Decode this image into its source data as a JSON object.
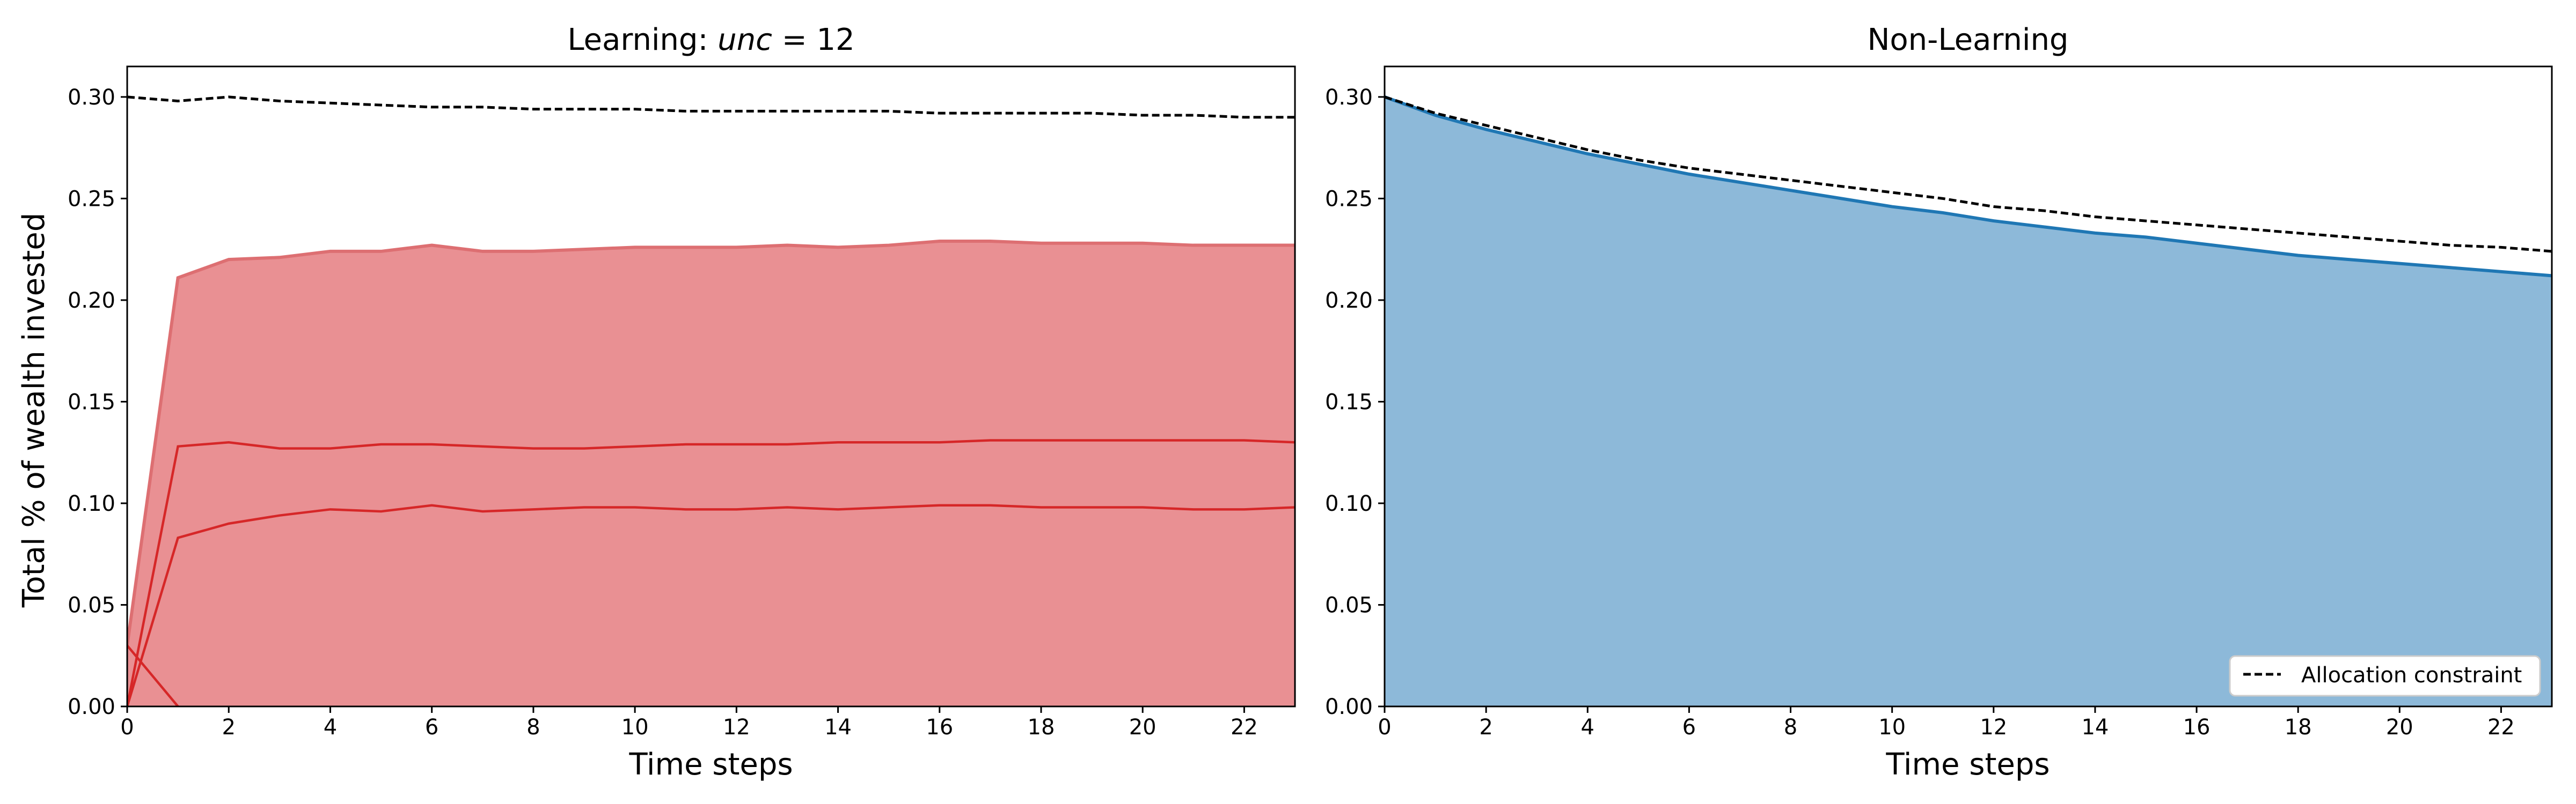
{
  "chart_data": [
    {
      "type": "area",
      "title_prefix": "Learning: ",
      "title_italic": "unc",
      "title_suffix": " = 12",
      "xlabel": "Time steps",
      "ylabel": "Total % of wealth invested",
      "xlim": [
        0,
        23
      ],
      "ylim": [
        0,
        0.315
      ],
      "xticks": [
        0,
        2,
        4,
        6,
        8,
        10,
        12,
        14,
        16,
        18,
        20,
        22
      ],
      "yticks": [
        0.0,
        0.05,
        0.1,
        0.15,
        0.2,
        0.25,
        0.3
      ],
      "x": [
        0,
        1,
        2,
        3,
        4,
        5,
        6,
        7,
        8,
        9,
        10,
        11,
        12,
        13,
        14,
        15,
        16,
        17,
        18,
        19,
        20,
        21,
        22,
        23
      ],
      "colors": {
        "fill": "#e99093",
        "edge": "#dd6f72",
        "line": "#d62728",
        "constraint": "#000000"
      },
      "series": [
        {
          "role": "upper_band",
          "values": [
            0.03,
            0.211,
            0.22,
            0.221,
            0.224,
            0.224,
            0.227,
            0.224,
            0.224,
            0.225,
            0.226,
            0.226,
            0.226,
            0.227,
            0.226,
            0.227,
            0.229,
            0.229,
            0.228,
            0.228,
            0.228,
            0.227,
            0.227,
            0.227
          ]
        },
        {
          "role": "line",
          "values": [
            0.0,
            0.128,
            0.13,
            0.127,
            0.127,
            0.129,
            0.129,
            0.128,
            0.127,
            0.127,
            0.128,
            0.129,
            0.129,
            0.129,
            0.13,
            0.13,
            0.13,
            0.131,
            0.131,
            0.131,
            0.131,
            0.131,
            0.131,
            0.13
          ]
        },
        {
          "role": "line",
          "values": [
            0.0,
            0.083,
            0.09,
            0.094,
            0.097,
            0.096,
            0.099,
            0.096,
            0.097,
            0.098,
            0.098,
            0.097,
            0.097,
            0.098,
            0.097,
            0.098,
            0.099,
            0.099,
            0.098,
            0.098,
            0.098,
            0.097,
            0.097,
            0.098
          ]
        },
        {
          "role": "line",
          "x": [
            0,
            1
          ],
          "values": [
            0.03,
            0.0
          ]
        },
        {
          "role": "constraint",
          "values": [
            0.3,
            0.298,
            0.3,
            0.298,
            0.297,
            0.296,
            0.295,
            0.295,
            0.294,
            0.294,
            0.294,
            0.293,
            0.293,
            0.293,
            0.293,
            0.293,
            0.292,
            0.292,
            0.292,
            0.292,
            0.291,
            0.291,
            0.29,
            0.29
          ]
        }
      ],
      "legend": null
    },
    {
      "type": "area",
      "title_prefix": "Non-Learning",
      "title_italic": "",
      "title_suffix": "",
      "xlabel": "Time steps",
      "ylabel": "",
      "xlim": [
        0,
        23
      ],
      "ylim": [
        0,
        0.315
      ],
      "xticks": [
        0,
        2,
        4,
        6,
        8,
        10,
        12,
        14,
        16,
        18,
        20,
        22
      ],
      "yticks": [
        0.0,
        0.05,
        0.1,
        0.15,
        0.2,
        0.25,
        0.3
      ],
      "x": [
        0,
        1,
        2,
        3,
        4,
        5,
        6,
        7,
        8,
        9,
        10,
        11,
        12,
        13,
        14,
        15,
        16,
        17,
        18,
        19,
        20,
        21,
        22,
        23
      ],
      "colors": {
        "fill": "#8db9d9",
        "edge": "#1f77b4",
        "line": "#1f77b4",
        "constraint": "#000000"
      },
      "series": [
        {
          "role": "area_line",
          "values": [
            0.3,
            0.291,
            0.284,
            0.278,
            0.272,
            0.267,
            0.262,
            0.258,
            0.254,
            0.25,
            0.246,
            0.243,
            0.239,
            0.236,
            0.233,
            0.231,
            0.228,
            0.225,
            0.222,
            0.22,
            0.218,
            0.216,
            0.214,
            0.212
          ]
        },
        {
          "role": "constraint",
          "name": "Allocation constraint",
          "values": [
            0.3,
            0.292,
            0.286,
            0.28,
            0.274,
            0.269,
            0.265,
            0.262,
            0.259,
            0.256,
            0.253,
            0.25,
            0.246,
            0.244,
            0.241,
            0.239,
            0.237,
            0.235,
            0.233,
            0.231,
            0.229,
            0.227,
            0.226,
            0.224
          ]
        }
      ],
      "legend": {
        "position": "lower right",
        "label": "Allocation constraint"
      }
    }
  ]
}
